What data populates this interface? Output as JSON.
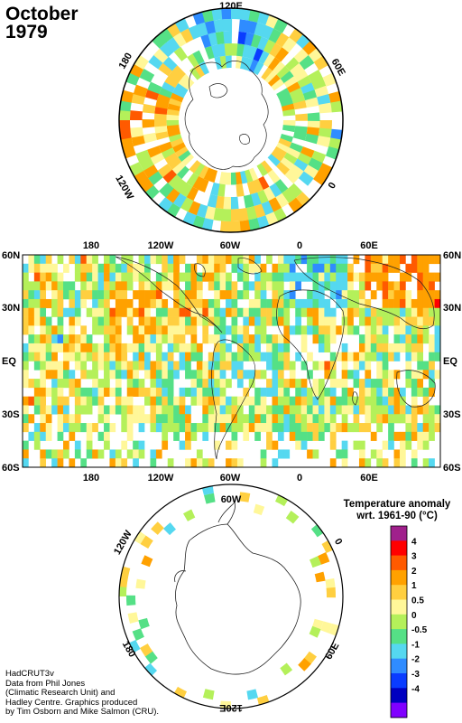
{
  "title": {
    "month": "October",
    "year": "1979"
  },
  "north_map": {
    "labels": {
      "top": "120E",
      "right_upper": "60E",
      "right_lower": "0",
      "left_upper": "180",
      "left_lower": "120W"
    }
  },
  "equatorial_map": {
    "lon_labels": [
      "180",
      "120W",
      "60W",
      "0",
      "60E"
    ],
    "lat_labels": [
      "60N",
      "30N",
      "EQ",
      "30S",
      "60S"
    ]
  },
  "south_map": {
    "labels": {
      "top": "60W",
      "left_upper": "120W",
      "right_upper": "0",
      "left_lower": "180",
      "right_lower": "60E",
      "bottom": "120E"
    }
  },
  "legend": {
    "title_line1": "Temperature anomaly",
    "title_line2": "wrt. 1961-90  (°C)",
    "ticks": [
      "4",
      "3",
      "2",
      "1",
      "0.5",
      "0",
      "-0.5",
      "-1",
      "-2",
      "-3",
      "-4"
    ],
    "colors": [
      "#a0208c",
      "#ff0000",
      "#ff5a00",
      "#ffa100",
      "#ffcf40",
      "#fff799",
      "#b4f05a",
      "#55e086",
      "#55d8f0",
      "#2f8cff",
      "#0a3cff",
      "#0000c0",
      "#8000ff"
    ]
  },
  "credits": [
    "HadCRUT3v",
    "Data from Phil Jones",
    "(Climatic Research Unit) and",
    "Hadley Centre.  Graphics produced",
    "by Tim Osborn and Mike Salmon (CRU)."
  ]
}
